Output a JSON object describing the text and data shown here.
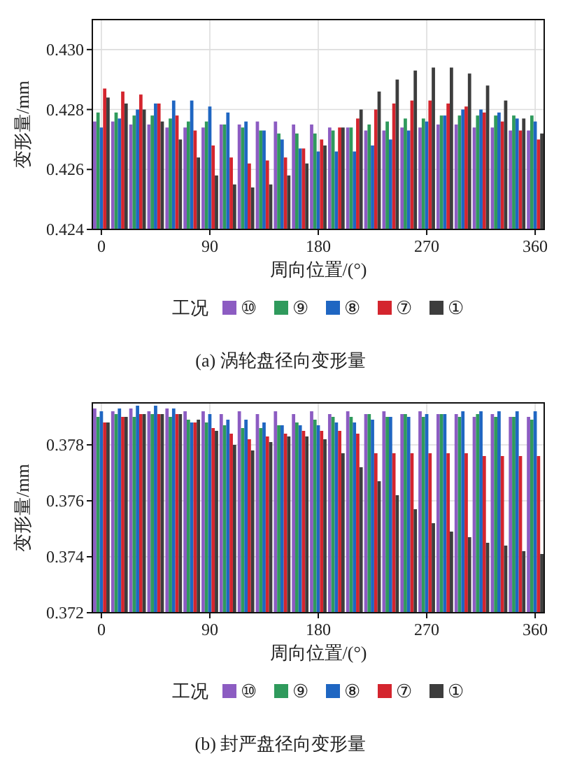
{
  "chart_data": [
    {
      "type": "bar",
      "title": "(a) 涡轮盘径向变形量",
      "xlabel": "周向位置/(°)",
      "ylabel": "变形量/mm",
      "legend_title": "工况",
      "legend": "bottom",
      "grid": true,
      "x": [
        0,
        15,
        30,
        45,
        60,
        75,
        90,
        105,
        120,
        135,
        150,
        165,
        180,
        195,
        210,
        225,
        240,
        255,
        270,
        285,
        300,
        315,
        330,
        345,
        360
      ],
      "xlim": [
        -7.5,
        367.5
      ],
      "xticks": [
        0,
        90,
        180,
        270,
        360
      ],
      "ylim": [
        0.424,
        0.431
      ],
      "yticks": [
        0.424,
        0.426,
        0.428,
        {
          "value": 0.43,
          "label": "0.430"
        }
      ],
      "series": [
        {
          "name": "⑩",
          "color": "#8c5cc2",
          "values": [
            0.4276,
            0.4276,
            0.4275,
            0.4275,
            0.4274,
            0.4274,
            0.4274,
            0.4275,
            0.4275,
            0.4276,
            0.4276,
            0.4275,
            0.4275,
            0.4274,
            0.4274,
            0.4273,
            0.4273,
            0.4274,
            0.4274,
            0.4275,
            0.4275,
            0.4274,
            0.4274,
            0.4273,
            0.4273
          ]
        },
        {
          "name": "⑨",
          "color": "#2f9a5c",
          "values": [
            0.4279,
            0.4279,
            0.4278,
            0.4278,
            0.4277,
            0.4276,
            0.4276,
            0.4275,
            0.4274,
            0.4273,
            0.4272,
            0.4272,
            0.4272,
            0.4273,
            0.4274,
            0.4275,
            0.4276,
            0.4277,
            0.4277,
            0.4278,
            0.4278,
            0.4278,
            0.4278,
            0.4278,
            0.4278
          ]
        },
        {
          "name": "⑧",
          "color": "#1f66c2",
          "values": [
            0.4274,
            0.4277,
            0.428,
            0.4282,
            0.4283,
            0.4283,
            0.4281,
            0.4279,
            0.4276,
            0.4273,
            0.427,
            0.4267,
            0.4266,
            0.4266,
            0.4266,
            0.4268,
            0.427,
            0.4273,
            0.4276,
            0.4278,
            0.428,
            0.428,
            0.4279,
            0.4277,
            0.4276
          ]
        },
        {
          "name": "⑦",
          "color": "#d4252e",
          "values": [
            0.4287,
            0.4286,
            0.4285,
            0.4282,
            0.4278,
            0.4273,
            0.4268,
            0.4264,
            0.4262,
            0.4263,
            0.4264,
            0.4267,
            0.427,
            0.4274,
            0.4277,
            0.428,
            0.4282,
            0.4283,
            0.4283,
            0.4282,
            0.4281,
            0.4279,
            0.4276,
            0.4273,
            0.427
          ]
        },
        {
          "name": "①",
          "color": "#3d3d3d",
          "values": [
            0.4284,
            0.4282,
            0.428,
            0.4276,
            0.427,
            0.4264,
            0.4258,
            0.4255,
            0.4254,
            0.4255,
            0.4258,
            0.4262,
            0.4268,
            0.4274,
            0.428,
            0.4286,
            0.429,
            0.4293,
            0.4294,
            0.4294,
            0.4292,
            0.4288,
            0.4283,
            0.4277,
            0.4272
          ]
        }
      ]
    },
    {
      "type": "bar",
      "title": "(b) 封严盘径向变形量",
      "xlabel": "周向位置/(°)",
      "ylabel": "变形量/mm",
      "legend_title": "工况",
      "legend": "bottom",
      "grid": true,
      "x": [
        0,
        15,
        30,
        45,
        60,
        75,
        90,
        105,
        120,
        135,
        150,
        165,
        180,
        195,
        210,
        225,
        240,
        255,
        270,
        285,
        300,
        315,
        330,
        345,
        360
      ],
      "xlim": [
        -7.5,
        367.5
      ],
      "xticks": [
        0,
        90,
        180,
        270,
        360
      ],
      "ylim": [
        0.372,
        0.3795
      ],
      "yticks": [
        0.372,
        0.374,
        0.376,
        0.378
      ],
      "series": [
        {
          "name": "⑩",
          "color": "#8c5cc2",
          "values": [
            0.3793,
            0.3792,
            0.3793,
            0.3792,
            0.3793,
            0.3792,
            0.3792,
            0.3791,
            0.3792,
            0.3791,
            0.3792,
            0.3791,
            0.3792,
            0.3791,
            0.3792,
            0.3791,
            0.3792,
            0.3791,
            0.3792,
            0.3791,
            0.3791,
            0.379,
            0.3791,
            0.379,
            0.379
          ]
        },
        {
          "name": "⑨",
          "color": "#2f9a5c",
          "values": [
            0.379,
            0.3791,
            0.379,
            0.3791,
            0.379,
            0.3789,
            0.3788,
            0.3787,
            0.3786,
            0.3786,
            0.3787,
            0.3788,
            0.3789,
            0.379,
            0.379,
            0.3791,
            0.379,
            0.3791,
            0.379,
            0.3791,
            0.379,
            0.3791,
            0.379,
            0.379,
            0.3789
          ]
        },
        {
          "name": "⑧",
          "color": "#1f66c2",
          "values": [
            0.3792,
            0.3793,
            0.3794,
            0.3794,
            0.3793,
            0.3788,
            0.3791,
            0.3789,
            0.3789,
            0.3788,
            0.3787,
            0.3787,
            0.3787,
            0.3788,
            0.3788,
            0.3789,
            0.379,
            0.379,
            0.3791,
            0.3791,
            0.3792,
            0.3792,
            0.3792,
            0.3792,
            0.3792
          ]
        },
        {
          "name": "⑦",
          "color": "#d4252e",
          "values": [
            0.3788,
            0.379,
            0.3791,
            0.3791,
            0.3791,
            0.3788,
            0.3786,
            0.3784,
            0.3782,
            0.3783,
            0.3784,
            0.3785,
            0.3785,
            0.3785,
            0.3784,
            0.3777,
            0.3777,
            0.3777,
            0.3777,
            0.3777,
            0.3777,
            0.3776,
            0.3776,
            0.3776,
            0.3776
          ]
        },
        {
          "name": "①",
          "color": "#3d3d3d",
          "values": [
            0.3788,
            0.379,
            0.3791,
            0.3791,
            0.3791,
            0.3789,
            0.3785,
            0.378,
            0.3778,
            0.3781,
            0.3783,
            0.3783,
            0.3782,
            0.3777,
            0.3772,
            0.3767,
            0.3762,
            0.3757,
            0.3752,
            0.3749,
            0.3747,
            0.3745,
            0.3744,
            0.3742,
            0.3741
          ]
        }
      ]
    }
  ]
}
